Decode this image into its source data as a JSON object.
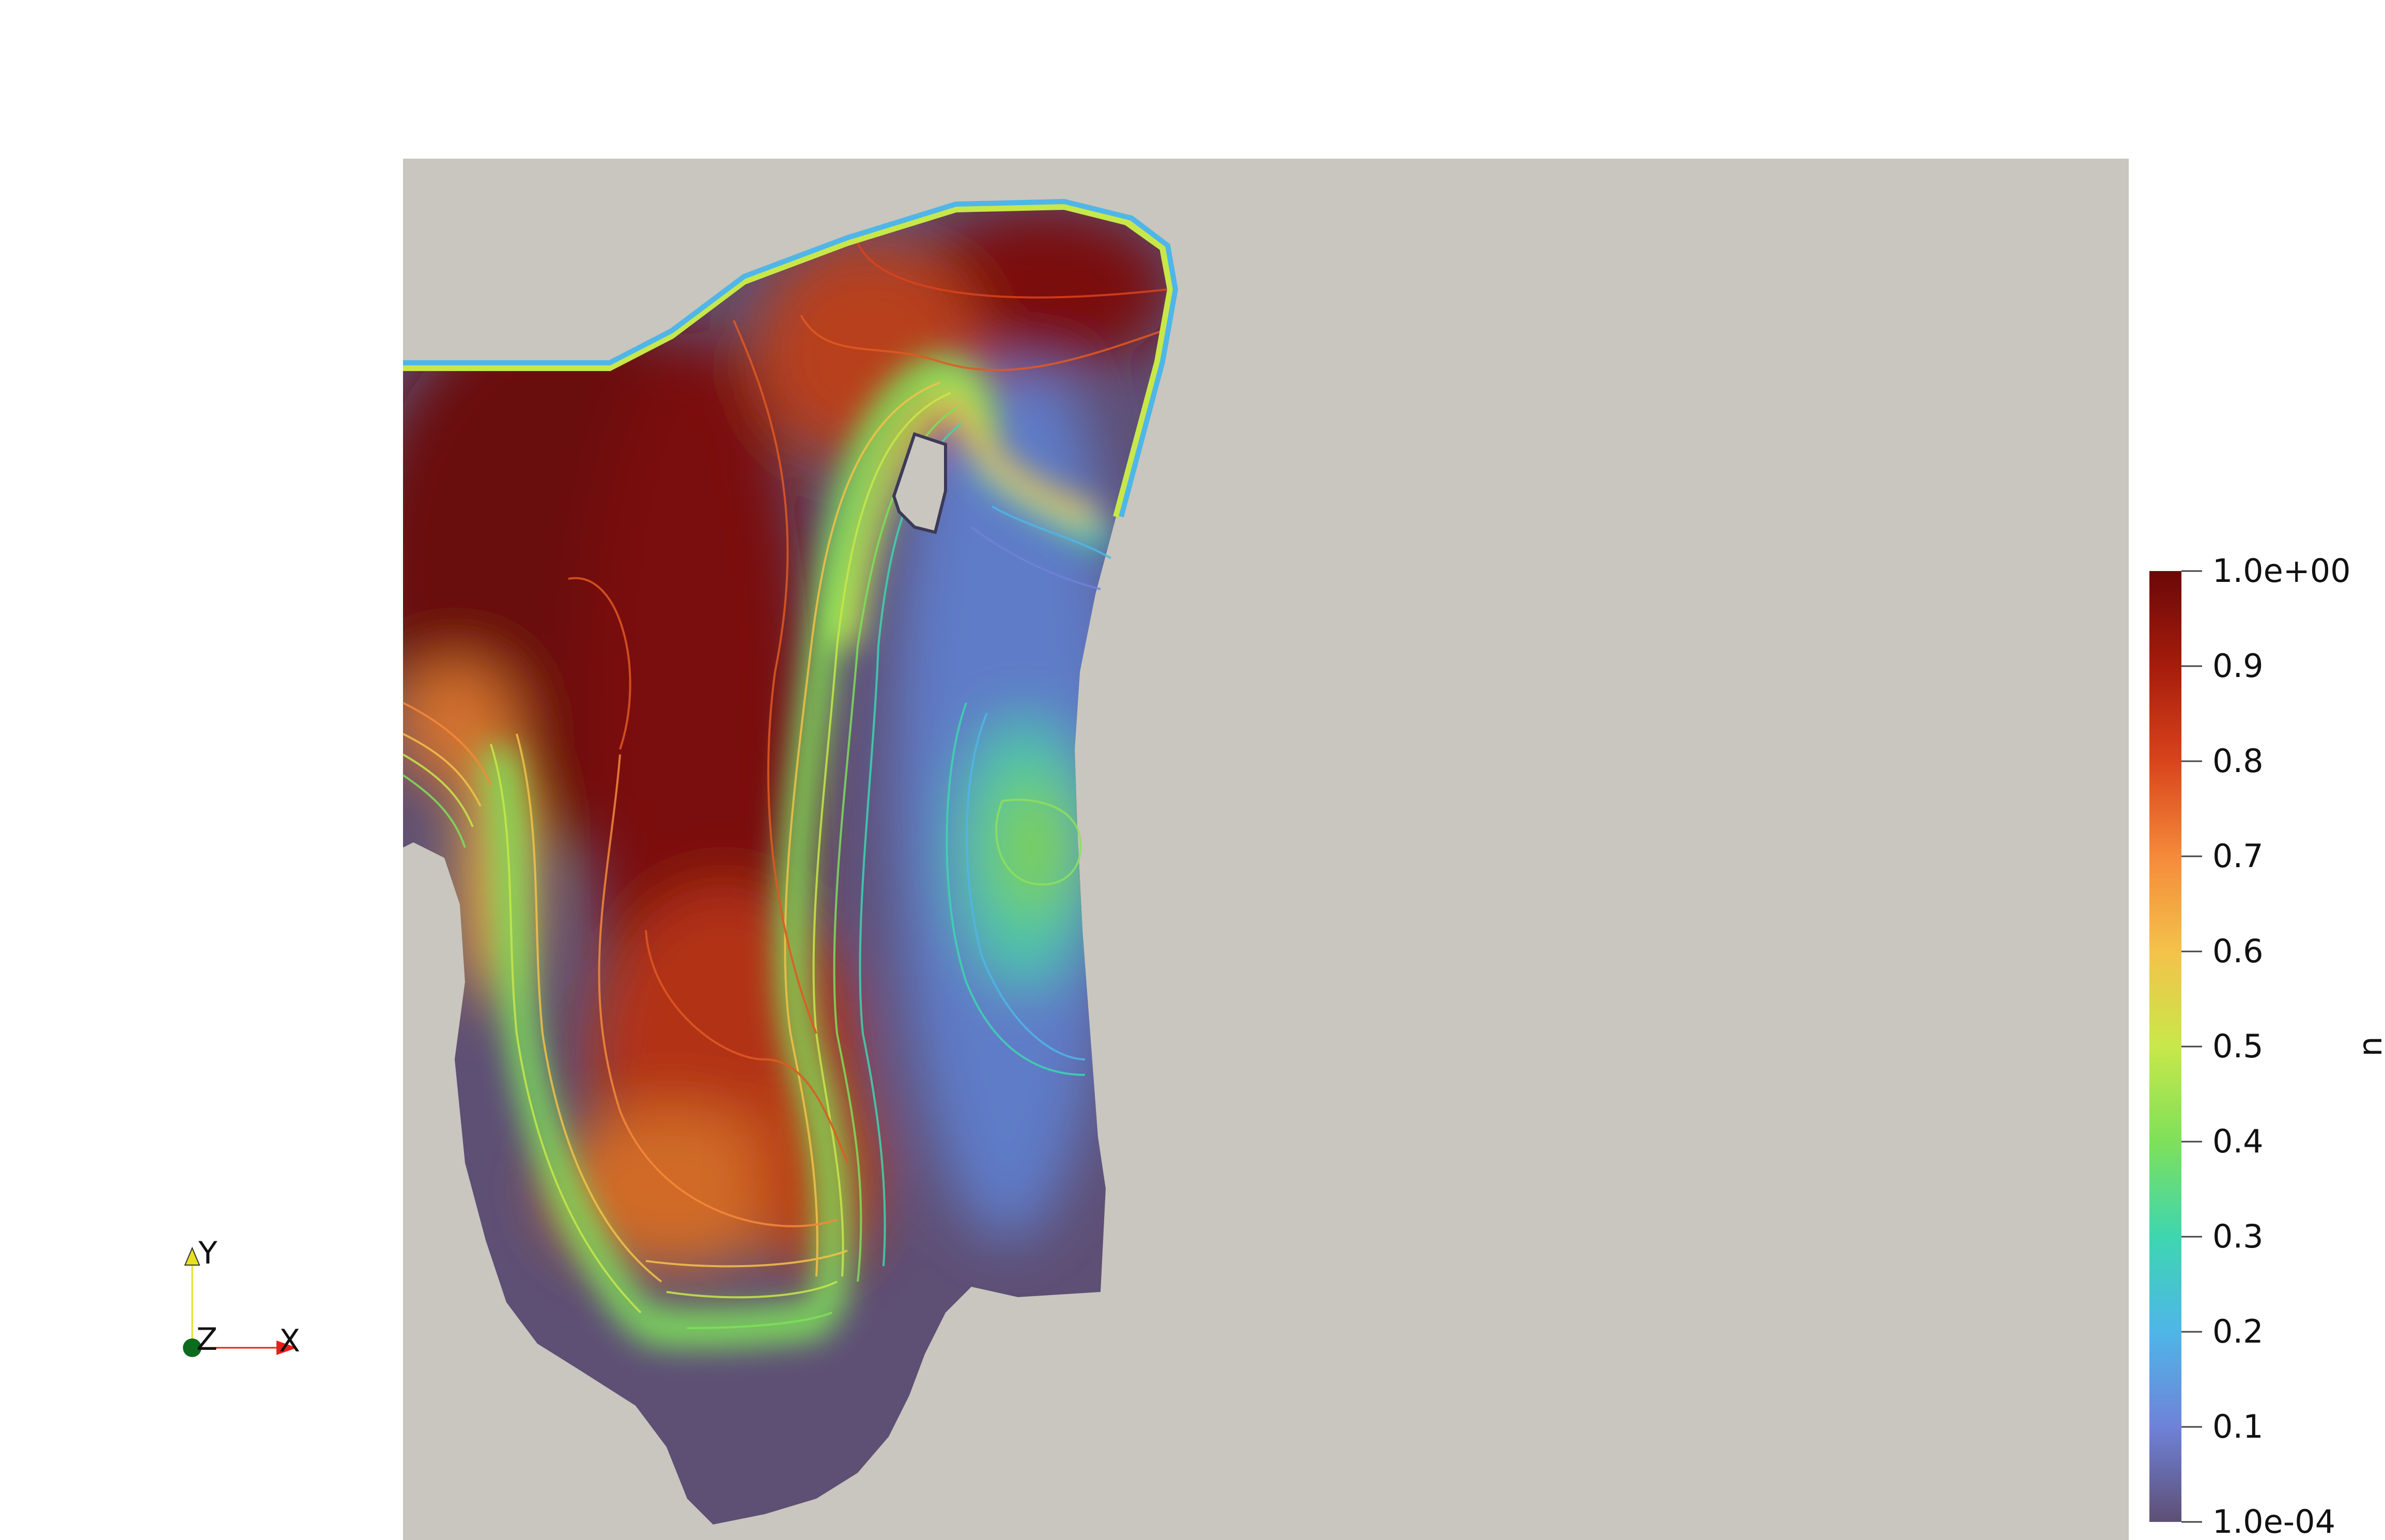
{
  "chart_data": {
    "type": "heatmap",
    "field": "u",
    "colorbar": {
      "title": "u",
      "range": [
        0.0001,
        1.0
      ],
      "ticks": [
        {
          "value": 1.0,
          "label": "1.0e+00"
        },
        {
          "value": 0.9,
          "label": "0.9"
        },
        {
          "value": 0.8,
          "label": "0.8"
        },
        {
          "value": 0.7,
          "label": "0.7"
        },
        {
          "value": 0.6,
          "label": "0.6"
        },
        {
          "value": 0.5,
          "label": "0.5"
        },
        {
          "value": 0.4,
          "label": "0.4"
        },
        {
          "value": 0.3,
          "label": "0.3"
        },
        {
          "value": 0.2,
          "label": "0.2"
        },
        {
          "value": 0.1,
          "label": "0.1"
        },
        {
          "value": 0.0001,
          "label": "1.0e-04"
        }
      ],
      "colormap": [
        "#5e4f75",
        "#6f82d8",
        "#4fb6e8",
        "#3ed6b0",
        "#7ee05a",
        "#c8e84a",
        "#f4c24a",
        "#f58a3a",
        "#d9441c",
        "#a61c0c",
        "#6b0808"
      ],
      "legend_position": "right"
    },
    "background_color": "#c8c6be",
    "axes_triad": {
      "labels": [
        "Y",
        "Z",
        "X"
      ],
      "colors": {
        "x": "#e8201c",
        "y": "#e6e020",
        "z": "#0b6b1e"
      }
    }
  }
}
